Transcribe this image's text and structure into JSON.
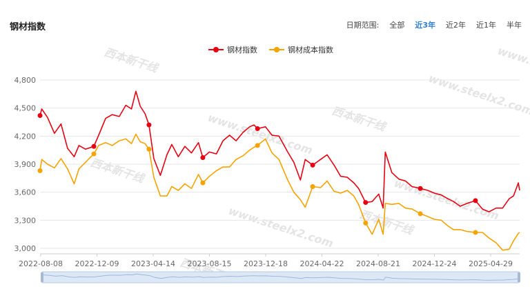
{
  "header": {
    "title": "钢材指数",
    "range_label": "日期范围:",
    "range_options": [
      "全部",
      "近3年",
      "近2年",
      "近1年",
      "半年"
    ],
    "active_range": "近3年"
  },
  "watermark": {
    "text": "www.steelx2.com",
    "logo_text": "西本新干线"
  },
  "colors": {
    "steel": "#e60012",
    "cost": "#f5a300",
    "grid": "#e6e6e6",
    "active": "#2f7fd0"
  },
  "chart_data": {
    "type": "line",
    "title": "",
    "xlabel": "",
    "ylabel": "",
    "ylim": [
      2950,
      4870
    ],
    "yticks": [
      3000,
      3300,
      3600,
      3900,
      4200,
      4500,
      4800
    ],
    "ytick_labels": [
      "3,000",
      "3,300",
      "3,600",
      "3,900",
      "4,200",
      "4,500",
      "4,800"
    ],
    "xtick_labels": [
      "2022-08-08",
      "2022-12-09",
      "2023-04-14",
      "2023-08-15",
      "2023-12-18",
      "2024-04-22",
      "2024-08-21",
      "2024-12-24",
      "2025-04-29"
    ],
    "grid": true,
    "legend": "top-center",
    "series": [
      {
        "name": "钢材指数",
        "x": [
          "2022-08-08",
          "2022-08-12",
          "2022-08-25",
          "2022-09-10",
          "2022-09-25",
          "2022-10-10",
          "2022-10-25",
          "2022-11-05",
          "2022-11-20",
          "2022-12-09",
          "2022-12-20",
          "2023-01-05",
          "2023-01-20",
          "2023-02-05",
          "2023-02-20",
          "2023-03-05",
          "2023-03-15",
          "2023-03-25",
          "2023-04-05",
          "2023-04-14",
          "2023-04-25",
          "2023-05-10",
          "2023-05-25",
          "2023-06-05",
          "2023-06-20",
          "2023-07-05",
          "2023-07-20",
          "2023-08-05",
          "2023-08-15",
          "2023-08-30",
          "2023-09-15",
          "2023-09-30",
          "2023-10-15",
          "2023-10-30",
          "2023-11-15",
          "2023-11-30",
          "2023-12-10",
          "2023-12-18",
          "2024-01-05",
          "2024-01-20",
          "2024-02-05",
          "2024-02-25",
          "2024-03-10",
          "2024-03-25",
          "2024-04-05",
          "2024-04-22",
          "2024-05-10",
          "2024-05-25",
          "2024-06-10",
          "2024-06-25",
          "2024-07-10",
          "2024-07-25",
          "2024-08-05",
          "2024-08-21",
          "2024-09-05",
          "2024-09-20",
          "2024-09-30",
          "2024-10-05",
          "2024-10-20",
          "2024-11-05",
          "2024-11-20",
          "2024-12-05",
          "2024-12-24",
          "2025-01-10",
          "2025-01-25",
          "2025-02-10",
          "2025-02-25",
          "2025-03-10",
          "2025-03-25",
          "2025-04-10",
          "2025-04-29",
          "2025-05-15",
          "2025-05-30",
          "2025-06-15",
          "2025-06-30",
          "2025-07-15",
          "2025-07-25",
          "2025-08-05",
          "2025-08-08"
        ],
        "values": [
          4420,
          4490,
          4400,
          4230,
          4330,
          4070,
          3980,
          4100,
          4060,
          4090,
          4210,
          4390,
          4430,
          4410,
          4530,
          4490,
          4680,
          4520,
          4440,
          4320,
          3960,
          3780,
          4000,
          4110,
          3980,
          4090,
          4020,
          4130,
          3970,
          4030,
          4010,
          4150,
          4210,
          4150,
          4240,
          4300,
          4320,
          4280,
          4300,
          4210,
          4200,
          4030,
          3920,
          3730,
          3950,
          3890,
          3950,
          4000,
          3890,
          3770,
          3760,
          3700,
          3640,
          3490,
          3500,
          3580,
          3430,
          4030,
          3810,
          3740,
          3720,
          3660,
          3640,
          3620,
          3590,
          3570,
          3530,
          3500,
          3450,
          3480,
          3510,
          3420,
          3390,
          3430,
          3430,
          3530,
          3560,
          3700,
          3620
        ]
      },
      {
        "name": "钢材成本指数",
        "x": [
          "2022-08-08",
          "2022-08-12",
          "2022-08-25",
          "2022-09-10",
          "2022-09-25",
          "2022-10-10",
          "2022-10-25",
          "2022-11-05",
          "2022-11-20",
          "2022-12-09",
          "2022-12-20",
          "2023-01-05",
          "2023-01-20",
          "2023-02-05",
          "2023-02-20",
          "2023-03-05",
          "2023-03-15",
          "2023-03-25",
          "2023-04-05",
          "2023-04-14",
          "2023-04-25",
          "2023-05-10",
          "2023-05-25",
          "2023-06-05",
          "2023-06-20",
          "2023-07-05",
          "2023-07-20",
          "2023-08-05",
          "2023-08-15",
          "2023-08-30",
          "2023-09-15",
          "2023-09-30",
          "2023-10-15",
          "2023-10-30",
          "2023-11-15",
          "2023-11-30",
          "2023-12-10",
          "2023-12-18",
          "2024-01-05",
          "2024-01-20",
          "2024-02-05",
          "2024-02-25",
          "2024-03-10",
          "2024-03-25",
          "2024-04-05",
          "2024-04-22",
          "2024-05-10",
          "2024-05-25",
          "2024-06-10",
          "2024-06-25",
          "2024-07-10",
          "2024-07-25",
          "2024-08-05",
          "2024-08-21",
          "2024-09-05",
          "2024-09-20",
          "2024-09-30",
          "2024-10-05",
          "2024-10-20",
          "2024-11-05",
          "2024-11-20",
          "2024-12-05",
          "2024-12-24",
          "2025-01-10",
          "2025-01-25",
          "2025-02-10",
          "2025-02-25",
          "2025-03-10",
          "2025-03-25",
          "2025-04-10",
          "2025-04-29",
          "2025-05-15",
          "2025-05-30",
          "2025-06-15",
          "2025-06-30",
          "2025-07-15",
          "2025-07-25",
          "2025-08-05",
          "2025-08-08"
        ],
        "values": [
          3830,
          3950,
          3900,
          3860,
          3960,
          3850,
          3690,
          3850,
          3920,
          4010,
          4100,
          4130,
          4100,
          4150,
          4170,
          4120,
          4220,
          4140,
          4120,
          4060,
          3760,
          3560,
          3560,
          3660,
          3620,
          3690,
          3640,
          3790,
          3700,
          3770,
          3830,
          3870,
          3870,
          3950,
          3990,
          4050,
          4080,
          4100,
          4170,
          4020,
          3950,
          3730,
          3600,
          3520,
          3440,
          3660,
          3650,
          3720,
          3610,
          3590,
          3620,
          3560,
          3470,
          3270,
          3150,
          3310,
          3150,
          3480,
          3470,
          3480,
          3430,
          3420,
          3370,
          3340,
          3310,
          3300,
          3240,
          3200,
          3200,
          3180,
          3170,
          3170,
          3110,
          3060,
          2980,
          2990,
          3080,
          3160,
          3170
        ]
      }
    ]
  }
}
